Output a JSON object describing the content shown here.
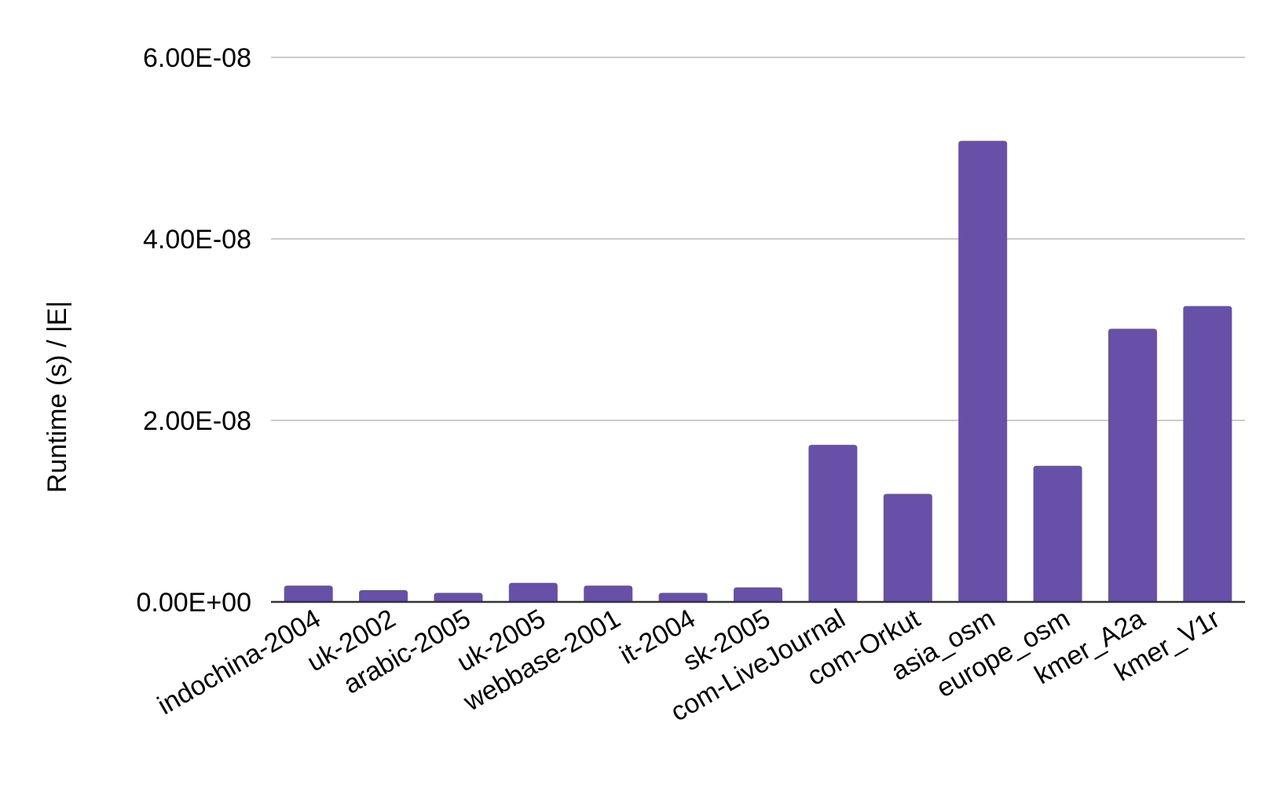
{
  "chart_data": {
    "type": "bar",
    "title": "",
    "xlabel": "",
    "ylabel": "Runtime (s) / |E|",
    "categories": [
      "indochina-2004",
      "uk-2002",
      "arabic-2005",
      "uk-2005",
      "webbase-2001",
      "it-2004",
      "sk-2005",
      "com-LiveJournal",
      "com-Orkut",
      "asia_osm",
      "europe_osm",
      "kmer_A2a",
      "kmer_V1r"
    ],
    "values": [
      1.8e-09,
      1.3e-09,
      1e-09,
      2.1e-09,
      1.8e-09,
      1e-09,
      1.6e-09,
      1.73e-08,
      1.19e-08,
      5.08e-08,
      1.5e-08,
      3.01e-08,
      3.26e-08
    ],
    "ylim": [
      0,
      6e-08
    ],
    "yticks": [
      0,
      2e-08,
      4e-08,
      6e-08
    ],
    "ytick_labels": [
      "0.00E+00",
      "2.00E-08",
      "4.00E-08",
      "6.00E-08"
    ],
    "grid": true,
    "legend": "none",
    "bar_color": "#6750a8",
    "grid_color": "#cccccc",
    "axis_color": "#333333"
  }
}
